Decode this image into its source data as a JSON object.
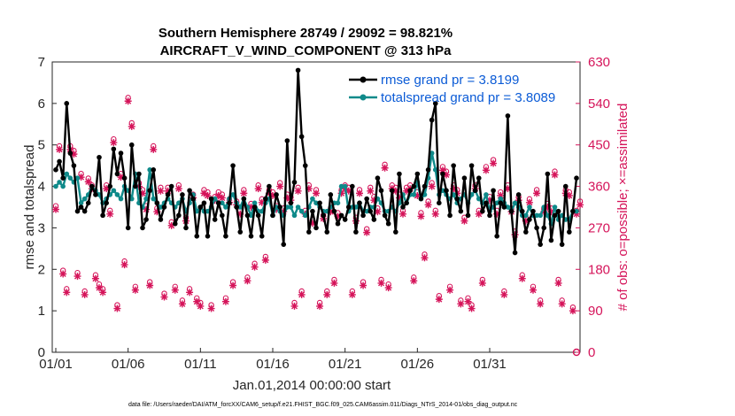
{
  "chart_data": {
    "type": "line",
    "title": "Southern Hemisphere 28749 / 29092 = 98.821%",
    "subtitle": "AIRCRAFT_V_WIND_COMPONENT @ 313 hPa",
    "xlabel": "Jan.01,2014 00:00:00 start",
    "ylabel_left": "rmse and totalspread",
    "ylabel_right": "# of obs: o=possible; ×=assimilated",
    "ylim_left": [
      0,
      7
    ],
    "ylim_right": [
      0,
      630
    ],
    "x_ticks": [
      "01/01",
      "01/06",
      "01/11",
      "01/16",
      "01/21",
      "01/26",
      "01/31"
    ],
    "y_ticks_left": [
      "0",
      "1",
      "2",
      "3",
      "4",
      "5",
      "6",
      "7"
    ],
    "y_ticks_right": [
      "0",
      "90",
      "180",
      "270",
      "360",
      "450",
      "540",
      "630"
    ],
    "footnote": "data file: /Users/raeder/DAI/ATM_forcXX/CAM6_setup/f.e21.FHIST_BGC.f09_025.CAM6assim.011/Diags_NTrS_2014-01/obs_diag_output.nc",
    "series": [
      {
        "name": "rmse grand pr = 3.8199",
        "color": "#000000",
        "values": [
          4.4,
          4.6,
          4.2,
          6.0,
          4.8,
          4.5,
          3.4,
          3.5,
          3.4,
          3.6,
          4.0,
          3.8,
          4.7,
          3.3,
          3.6,
          4.0,
          4.9,
          4.3,
          4.8,
          4.2,
          3.0,
          5.0,
          4.0,
          4.3,
          3.0,
          3.2,
          3.9,
          4.4,
          3.6,
          3.2,
          3.5,
          3.8,
          4.0,
          3.1,
          3.3,
          3.8,
          3.0,
          3.9,
          3.7,
          2.8,
          3.5,
          3.6,
          2.8,
          3.7,
          3.2,
          3.6,
          3.3,
          2.8,
          3.6,
          4.5,
          3.5,
          2.9,
          3.7,
          3.3,
          2.8,
          3.5,
          3.3,
          2.8,
          3.7,
          4.0,
          3.3,
          3.8,
          3.5,
          2.6,
          5.1,
          3.6,
          4.1,
          6.8,
          5.2,
          4.5,
          2.9,
          3.4,
          3.0,
          3.6,
          3.3,
          2.9,
          3.8,
          3.4,
          3.1,
          3.3,
          3.2,
          3.5,
          4.0,
          2.9,
          3.6,
          3.3,
          3.7,
          3.4,
          3.2,
          4.2,
          3.9,
          3.3,
          3.1,
          3.9,
          2.9,
          4.3,
          3.5,
          3.6,
          3.9,
          4.0,
          4.3,
          3.7,
          4.0,
          4.4,
          5.6,
          6.0,
          3.6,
          4.3,
          3.9,
          3.3,
          4.5,
          3.7,
          3.4,
          4.2,
          3.3,
          4.5,
          3.9,
          4.2,
          3.4,
          3.6,
          3.3,
          3.9,
          2.8,
          3.6,
          3.5,
          5.7,
          3.4,
          2.4,
          3.8,
          3.4,
          2.9,
          3.2,
          3.4,
          3.0,
          2.6,
          3.0,
          4.3,
          2.7,
          3.3,
          3.4,
          2.6,
          4.0,
          2.9,
          3.4,
          4.2
        ]
      },
      {
        "name": "totalspread grand pr = 3.8089",
        "color": "#0f8a8a",
        "values": [
          4.0,
          4.1,
          4.0,
          4.3,
          4.2,
          4.1,
          4.2,
          3.6,
          3.7,
          3.8,
          4.0,
          3.9,
          3.8,
          3.6,
          3.7,
          3.8,
          3.9,
          3.8,
          3.7,
          4.0,
          3.9,
          3.7,
          4.3,
          3.6,
          3.5,
          3.7,
          4.4,
          3.7,
          3.6,
          3.5,
          3.6,
          3.7,
          3.6,
          3.5,
          3.6,
          3.7,
          3.4,
          3.6,
          3.8,
          3.4,
          3.5,
          3.4,
          3.4,
          3.5,
          3.7,
          3.6,
          3.6,
          3.5,
          3.7,
          3.8,
          3.6,
          3.5,
          3.7,
          3.5,
          3.3,
          3.6,
          3.4,
          3.4,
          3.6,
          3.7,
          3.3,
          3.5,
          3.4,
          3.3,
          3.5,
          3.5,
          3.3,
          3.5,
          3.4,
          3.3,
          3.5,
          3.7,
          3.6,
          3.5,
          3.4,
          3.4,
          3.5,
          3.6,
          3.6,
          4.0,
          4.0,
          3.4,
          3.5,
          3.5,
          3.6,
          3.4,
          3.4,
          3.5,
          3.5,
          3.7,
          3.6,
          3.4,
          3.4,
          3.5,
          3.4,
          3.6,
          3.8,
          3.6,
          3.8,
          3.8,
          4.1,
          3.7,
          3.8,
          4.2,
          4.8,
          4.4,
          3.8,
          3.9,
          3.8,
          3.7,
          3.8,
          3.6,
          3.7,
          3.8,
          3.6,
          3.8,
          3.9,
          3.7,
          3.6,
          3.8,
          3.4,
          3.5,
          3.6,
          3.7,
          3.6,
          3.5,
          3.4,
          3.6,
          3.5,
          3.3,
          3.3,
          3.5,
          3.3,
          3.3,
          3.3,
          3.5,
          3.3,
          3.1,
          3.5,
          3.2,
          3.3,
          3.2,
          3.2,
          3.4,
          3.4
        ]
      },
      {
        "name": "obs possible",
        "color": "#d5145a",
        "values": [
          310,
          440,
          170,
          130,
          440,
          430,
          165,
          380,
          125,
          370,
          355,
          160,
          140,
          130,
          355,
          300,
          455,
          95,
          380,
          190,
          545,
          490,
          135,
          360,
          345,
          310,
          145,
          440,
          305,
          350,
          120,
          350,
          275,
          135,
          355,
          105,
          285,
          130,
          335,
          110,
          100,
          345,
          340,
          95,
          330,
          340,
          335,
          110,
          325,
          145,
          320,
          300,
          345,
          155,
          315,
          185,
          355,
          325,
          200,
          345,
          340,
          310,
          360,
          305,
          335,
          330,
          100,
          350,
          125,
          300,
          355,
          280,
          345,
          100,
          290,
          125,
          305,
          150,
          295,
          345,
          355,
          350,
          125,
          285,
          345,
          145,
          260,
          350,
          330,
          305,
          150,
          400,
          140,
          355,
          350,
          335,
          300,
          350,
          355,
          155,
          340,
          295,
          205,
          320,
          360,
          300,
          115,
          395,
          385,
          135,
          355,
          345,
          105,
          285,
          110,
          95,
          355,
          300,
          150,
          395,
          330,
          410,
          300,
          340,
          125,
          355,
          305,
          255,
          330,
          160,
          285,
          325,
          135,
          345,
          105,
          305,
          315,
          305,
          385,
          150,
          105,
          345,
          340,
          90,
          300,
          320
        ]
      }
    ]
  }
}
